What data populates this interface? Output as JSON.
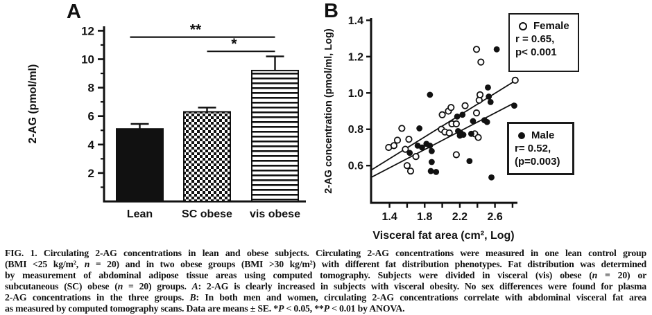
{
  "figure": {
    "panel_a": {
      "label": "A",
      "chart_data": {
        "type": "bar",
        "categories": [
          "Lean",
          "SC obese",
          "vis obese"
        ],
        "values": [
          5.1,
          6.3,
          9.2
        ],
        "errors": [
          0.35,
          0.3,
          1.0
        ],
        "bar_styles": [
          "solid-black",
          "checkerboard",
          "horizontal-stripes"
        ],
        "ylabel": "2-AG (pmol/ml)",
        "yticks": [
          2,
          4,
          6,
          8,
          10,
          12
        ],
        "yticks_minor": [
          1,
          3,
          5,
          7,
          9,
          11
        ],
        "ylim": [
          0,
          12.4
        ],
        "significance": [
          {
            "label": "**",
            "y": 11.55,
            "from": "Lean",
            "to": "vis obese"
          },
          {
            "label": "*",
            "y": 10.55,
            "from": "SC obese",
            "to": "vis obese"
          }
        ]
      }
    },
    "panel_b": {
      "label": "B",
      "chart_data": {
        "type": "scatter",
        "xlabel": "Visceral fat area (cm², Log)",
        "ylabel": "2-AG concentration (pmol/ml, Log)",
        "xlim": [
          1.19,
          2.84
        ],
        "ylim": [
          0.395,
          1.405
        ],
        "xticks": [
          1.4,
          1.6,
          1.8,
          2.0,
          2.2,
          2.4,
          2.6,
          2.8
        ],
        "xtick_labels": [
          "1.4",
          "",
          "1.8",
          "",
          "2.2",
          "",
          "2.6",
          ""
        ],
        "ytick_vals": [
          0.6,
          0.8,
          1.0,
          1.2,
          1.4
        ],
        "ytick_labels": [
          "0.6",
          "0.8",
          "1.0",
          "1.2",
          "1.4"
        ],
        "series": [
          {
            "name": "Female",
            "marker": "open-circle",
            "points": [
              [
                1.39,
                0.7
              ],
              [
                1.45,
                0.71
              ],
              [
                1.49,
                0.74
              ],
              [
                1.54,
                0.805
              ],
              [
                1.58,
                0.69
              ],
              [
                1.62,
                0.745
              ],
              [
                1.6,
                0.6
              ],
              [
                1.64,
                0.57
              ],
              [
                1.7,
                0.65
              ],
              [
                1.99,
                0.8
              ],
              [
                2.03,
                0.785
              ],
              [
                2.08,
                0.78
              ],
              [
                2.0,
                0.88
              ],
              [
                2.07,
                0.9
              ],
              [
                2.1,
                0.92
              ],
              [
                2.11,
                0.83
              ],
              [
                2.16,
                0.83
              ],
              [
                2.16,
                0.66
              ],
              [
                2.26,
                0.93
              ],
              [
                2.37,
                0.775
              ],
              [
                2.39,
                0.89
              ],
              [
                2.41,
                0.755
              ],
              [
                2.42,
                0.96
              ],
              [
                2.43,
                0.99
              ],
              [
                2.39,
                1.24
              ],
              [
                2.44,
                1.17
              ],
              [
                2.83,
                1.07
              ]
            ],
            "regression": {
              "x1": 1.19,
              "y1": 0.575,
              "x2": 2.84,
              "y2": 1.07
            },
            "legend": {
              "title": "Female",
              "line2": "r = 0.65,",
              "line3": "p< 0.001"
            }
          },
          {
            "name": "Male",
            "marker": "filled-circle",
            "points": [
              [
                1.63,
                0.67
              ],
              [
                1.72,
                0.71
              ],
              [
                1.74,
                0.805
              ],
              [
                1.77,
                0.7
              ],
              [
                1.82,
                0.72
              ],
              [
                1.86,
                0.71
              ],
              [
                1.88,
                0.68
              ],
              [
                1.88,
                0.62
              ],
              [
                1.87,
                0.57
              ],
              [
                1.93,
                0.565
              ],
              [
                1.86,
                0.99
              ],
              [
                2.17,
                0.87
              ],
              [
                2.23,
                0.88
              ],
              [
                2.18,
                0.79
              ],
              [
                2.21,
                0.78
              ],
              [
                2.2,
                0.765
              ],
              [
                2.24,
                0.77
              ],
              [
                2.33,
                0.775
              ],
              [
                2.31,
                0.625
              ],
              [
                2.35,
                0.845
              ],
              [
                2.48,
                0.85
              ],
              [
                2.51,
                0.84
              ],
              [
                2.53,
                0.98
              ],
              [
                2.55,
                0.95
              ],
              [
                2.52,
                1.03
              ],
              [
                2.62,
                1.24
              ],
              [
                2.56,
                0.535
              ],
              [
                2.82,
                0.93
              ]
            ],
            "regression": {
              "x1": 1.19,
              "y1": 0.535,
              "x2": 2.82,
              "y2": 0.945
            },
            "legend": {
              "title": "Male",
              "line2": "r= 0.52,",
              "line3": "(p=0.003)"
            }
          }
        ]
      }
    },
    "caption_lines": [
      [
        {
          "t": "FIG. 1. Circulating 2-AG concentrations in lean and obese subjects. Circulating 2-AG concentrations were measured in one lean control group"
        }
      ],
      [
        {
          "t": "(BMI <25 kg/m², "
        },
        {
          "t": "n",
          "i": 1
        },
        {
          "t": " = 20) and in two obese groups (BMI >30 kg/m²) with different fat distribution phenotypes. Fat distribution was determined"
        }
      ],
      [
        {
          "t": "by measurement of abdominal adipose tissue areas using computed tomography. Subjects were divided in visceral (vis) obese ("
        },
        {
          "t": "n",
          "i": 1
        },
        {
          "t": " = 20) or"
        }
      ],
      [
        {
          "t": "subcutaneous (SC) obese ("
        },
        {
          "t": "n",
          "i": 1
        },
        {
          "t": " = 20) groups. "
        },
        {
          "t": "A",
          "i": 1
        },
        {
          "t": ": 2-AG is clearly increased in subjects with visceral obesity. No sex differences were found for plasma"
        }
      ],
      [
        {
          "t": "2-AG concentrations in the three groups. "
        },
        {
          "t": "B",
          "i": 1
        },
        {
          "t": ": In both men and women, circulating 2-AG concentrations correlate with abdominal visceral fat area"
        }
      ],
      [
        {
          "t": "as measured by computed tomography scans. Data are means ± SE. *"
        },
        {
          "t": "P",
          "i": 1
        },
        {
          "t": " < 0.05, **"
        },
        {
          "t": "P",
          "i": 1
        },
        {
          "t": " < 0.01 by ANOVA."
        }
      ]
    ]
  }
}
